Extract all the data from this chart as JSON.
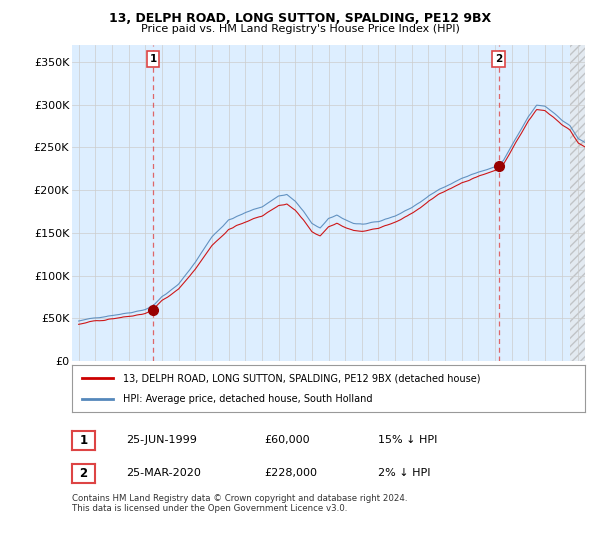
{
  "title": "13, DELPH ROAD, LONG SUTTON, SPALDING, PE12 9BX",
  "subtitle": "Price paid vs. HM Land Registry's House Price Index (HPI)",
  "ylabel_values": [
    0,
    50000,
    100000,
    150000,
    200000,
    250000,
    300000,
    350000
  ],
  "ylabel_labels": [
    "£0",
    "£50K",
    "£100K",
    "£150K",
    "£200K",
    "£250K",
    "£300K",
    "£350K"
  ],
  "xlim_start": 1994.6,
  "xlim_end": 2025.4,
  "ylim": [
    0,
    370000
  ],
  "purchase_dates": [
    1999.47,
    2020.21
  ],
  "purchase_prices": [
    60000,
    228000
  ],
  "purchase_labels": [
    "1",
    "2"
  ],
  "legend_line1": "13, DELPH ROAD, LONG SUTTON, SPALDING, PE12 9BX (detached house)",
  "legend_line2": "HPI: Average price, detached house, South Holland",
  "annotation1_date": "25-JUN-1999",
  "annotation1_price": "£60,000",
  "annotation1_note": "15% ↓ HPI",
  "annotation2_date": "25-MAR-2020",
  "annotation2_price": "£228,000",
  "annotation2_note": "2% ↓ HPI",
  "footer": "Contains HM Land Registry data © Crown copyright and database right 2024.\nThis data is licensed under the Open Government Licence v3.0.",
  "line_color_red": "#cc0000",
  "line_color_blue": "#5588bb",
  "dashed_color": "#dd4444",
  "bg_fill_color": "#ddeeff",
  "background_color": "#ffffff",
  "grid_color": "#cccccc",
  "hatch_start": 2024.5
}
